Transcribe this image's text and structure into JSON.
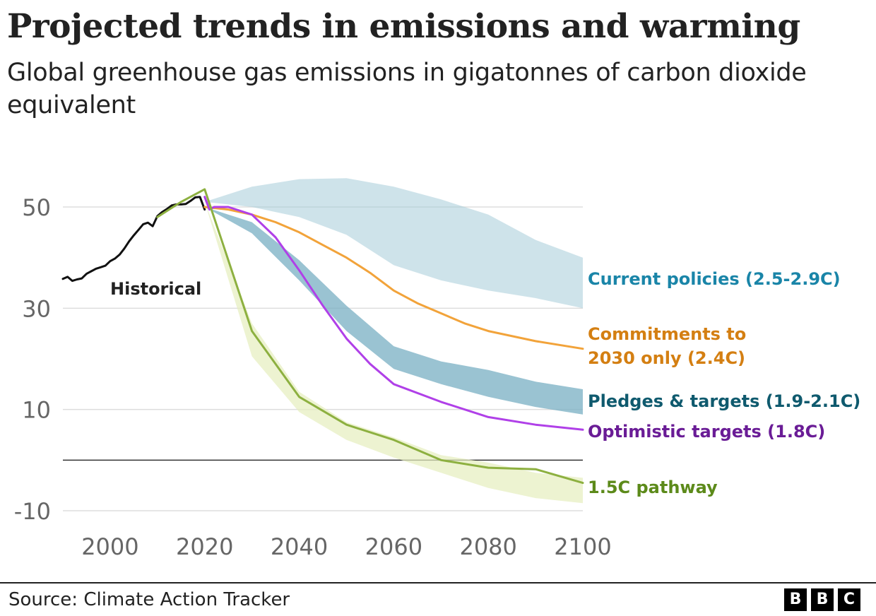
{
  "title": "Projected trends in emissions and warming",
  "subtitle": "Global greenhouse gas emissions in gigatonnes of carbon dioxide equivalent",
  "source": "Source: Climate Action Tracker",
  "logo": [
    "B",
    "B",
    "C"
  ],
  "chart_data": {
    "type": "line",
    "xlim": [
      1990,
      2100
    ],
    "ylim": [
      -10,
      50
    ],
    "x_ticks": [
      2000,
      2020,
      2040,
      2060,
      2080,
      2100
    ],
    "y_ticks": [
      -10,
      10,
      30,
      50
    ],
    "grid": true,
    "zero_line": 0,
    "series": [
      {
        "name": "Historical",
        "kind": "line",
        "color": "#111111",
        "x": [
          1990,
          1991,
          1992,
          1993,
          1994,
          1995,
          1996,
          1997,
          1998,
          1999,
          2000,
          2001,
          2002,
          2003,
          2004,
          2005,
          2006,
          2007,
          2008,
          2009,
          2010,
          2011,
          2012,
          2013,
          2014,
          2015,
          2016,
          2017,
          2018,
          2019,
          2020
        ],
        "y": [
          35.8,
          36.2,
          35.4,
          35.7,
          35.9,
          36.8,
          37.3,
          37.8,
          38.1,
          38.4,
          39.3,
          39.8,
          40.6,
          41.8,
          43.2,
          44.4,
          45.5,
          46.6,
          46.9,
          46.2,
          48.2,
          49.0,
          49.6,
          50.3,
          50.5,
          50.5,
          50.6,
          51.2,
          51.9,
          52.0,
          49.5
        ]
      },
      {
        "name": "Current policies (2.5-2.9C)",
        "kind": "band",
        "color": "#a6ccd8",
        "opacity": 0.55,
        "x": [
          2020,
          2030,
          2040,
          2050,
          2060,
          2070,
          2080,
          2090,
          2100
        ],
        "upper": [
          51.0,
          54.0,
          55.5,
          55.7,
          54.0,
          51.5,
          48.5,
          43.5,
          40.0
        ],
        "lower": [
          51.0,
          50.0,
          48.0,
          44.5,
          38.5,
          35.5,
          33.5,
          32.0,
          30.0
        ]
      },
      {
        "name": "Pledges & targets (1.9-2.1C)",
        "kind": "band",
        "color": "#78afc3",
        "opacity": 0.75,
        "x": [
          2020,
          2030,
          2040,
          2050,
          2060,
          2070,
          2080,
          2090,
          2100
        ],
        "upper": [
          50.0,
          47.0,
          39.5,
          30.5,
          22.5,
          19.5,
          17.8,
          15.5,
          14.0
        ],
        "lower": [
          50.0,
          44.8,
          35.5,
          25.5,
          18.0,
          15.0,
          12.5,
          10.5,
          9.0
        ]
      },
      {
        "name": "1.5C pathway",
        "kind": "band",
        "color": "#e6eebd",
        "opacity": 0.7,
        "x": [
          2020,
          2030,
          2040,
          2050,
          2060,
          2070,
          2080,
          2090,
          2100
        ],
        "upper": [
          51.0,
          27.0,
          13.5,
          7.5,
          4.5,
          1.0,
          -0.5,
          -2.5,
          -3.5
        ],
        "lower": [
          51.0,
          20.5,
          9.5,
          4.0,
          0.5,
          -2.5,
          -5.5,
          -7.5,
          -8.5
        ]
      },
      {
        "name": "Commitments to 2030 only (2.4C)",
        "kind": "line",
        "color": "#f2a33a",
        "x": [
          2020,
          2025,
          2030,
          2035,
          2040,
          2045,
          2050,
          2055,
          2060,
          2065,
          2070,
          2075,
          2080,
          2090,
          2100
        ],
        "y": [
          50.0,
          49.5,
          48.5,
          47.0,
          45.0,
          42.5,
          40.0,
          37.0,
          33.5,
          31.0,
          29.0,
          27.0,
          25.5,
          23.5,
          22.0
        ]
      },
      {
        "name": "Optimistic targets (1.8C)",
        "kind": "line",
        "color": "#b040e8",
        "x": [
          2020,
          2021,
          2022,
          2025,
          2030,
          2035,
          2040,
          2045,
          2050,
          2055,
          2060,
          2070,
          2080,
          2090,
          2100
        ],
        "y": [
          52.0,
          49.5,
          50.0,
          50.0,
          48.5,
          44.0,
          37.5,
          30.5,
          24.0,
          19.0,
          15.0,
          11.5,
          8.5,
          7.0,
          6.0
        ]
      },
      {
        "name": "1.5C pathway",
        "kind": "line",
        "color": "#8db040",
        "x": [
          2010,
          2015,
          2020,
          2030,
          2040,
          2050,
          2060,
          2070,
          2080,
          2090,
          2100
        ],
        "y": [
          48.0,
          51.0,
          53.5,
          25.5,
          12.5,
          7.0,
          4.0,
          0.0,
          -1.5,
          -1.8,
          -4.5
        ]
      }
    ],
    "annotations": {
      "historical": "Historical",
      "current_policies": "Current policies (2.5-2.9C)",
      "commitments_line1": "Commitments to",
      "commitments_line2": "2030 only (2.4C)",
      "pledges": "Pledges & targets (1.9-2.1C)",
      "optimistic": "Optimistic targets (1.8C)",
      "pathway": "1.5C pathway"
    },
    "label_colors": {
      "historical": "#222222",
      "current_policies": "#1a85a8",
      "commitments": "#d47f12",
      "pledges": "#0f5a6e",
      "optimistic": "#6a1c96",
      "pathway": "#5c8a1a"
    }
  }
}
